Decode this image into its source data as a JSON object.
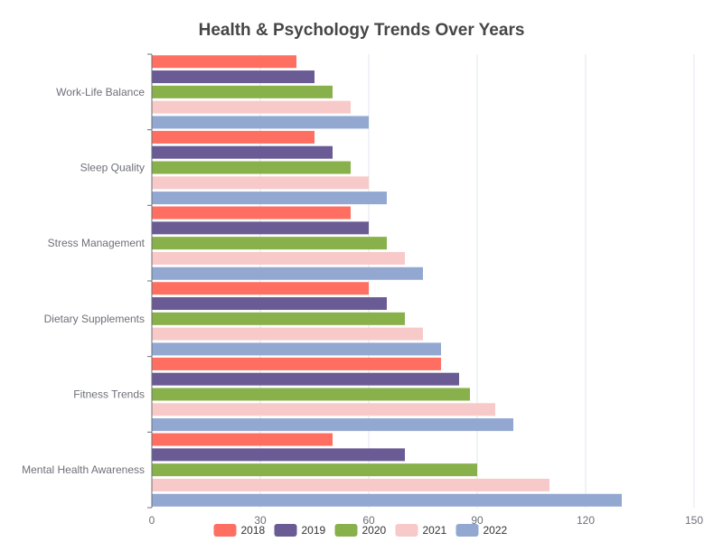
{
  "chart_data": {
    "type": "bar",
    "orientation": "horizontal",
    "title": "Health & Psychology Trends Over Years",
    "categories": [
      "Mental Health Awareness",
      "Fitness Trends",
      "Dietary Supplements",
      "Stress Management",
      "Sleep Quality",
      "Work-Life Balance"
    ],
    "series": [
      {
        "name": "2018",
        "color": "#ff6f61",
        "values": [
          50,
          80,
          60,
          55,
          45,
          40
        ]
      },
      {
        "name": "2019",
        "color": "#6b5b95",
        "values": [
          70,
          85,
          65,
          60,
          50,
          45
        ]
      },
      {
        "name": "2020",
        "color": "#88b04b",
        "values": [
          90,
          88,
          70,
          65,
          55,
          50
        ]
      },
      {
        "name": "2021",
        "color": "#f7cac9",
        "values": [
          110,
          95,
          75,
          70,
          60,
          55
        ]
      },
      {
        "name": "2022",
        "color": "#92a8d1",
        "values": [
          130,
          100,
          80,
          75,
          65,
          60
        ]
      }
    ],
    "xlim": [
      0,
      150
    ],
    "xticks": [
      0,
      30,
      60,
      90,
      120,
      150
    ],
    "grid": true,
    "legend_position": "bottom"
  }
}
